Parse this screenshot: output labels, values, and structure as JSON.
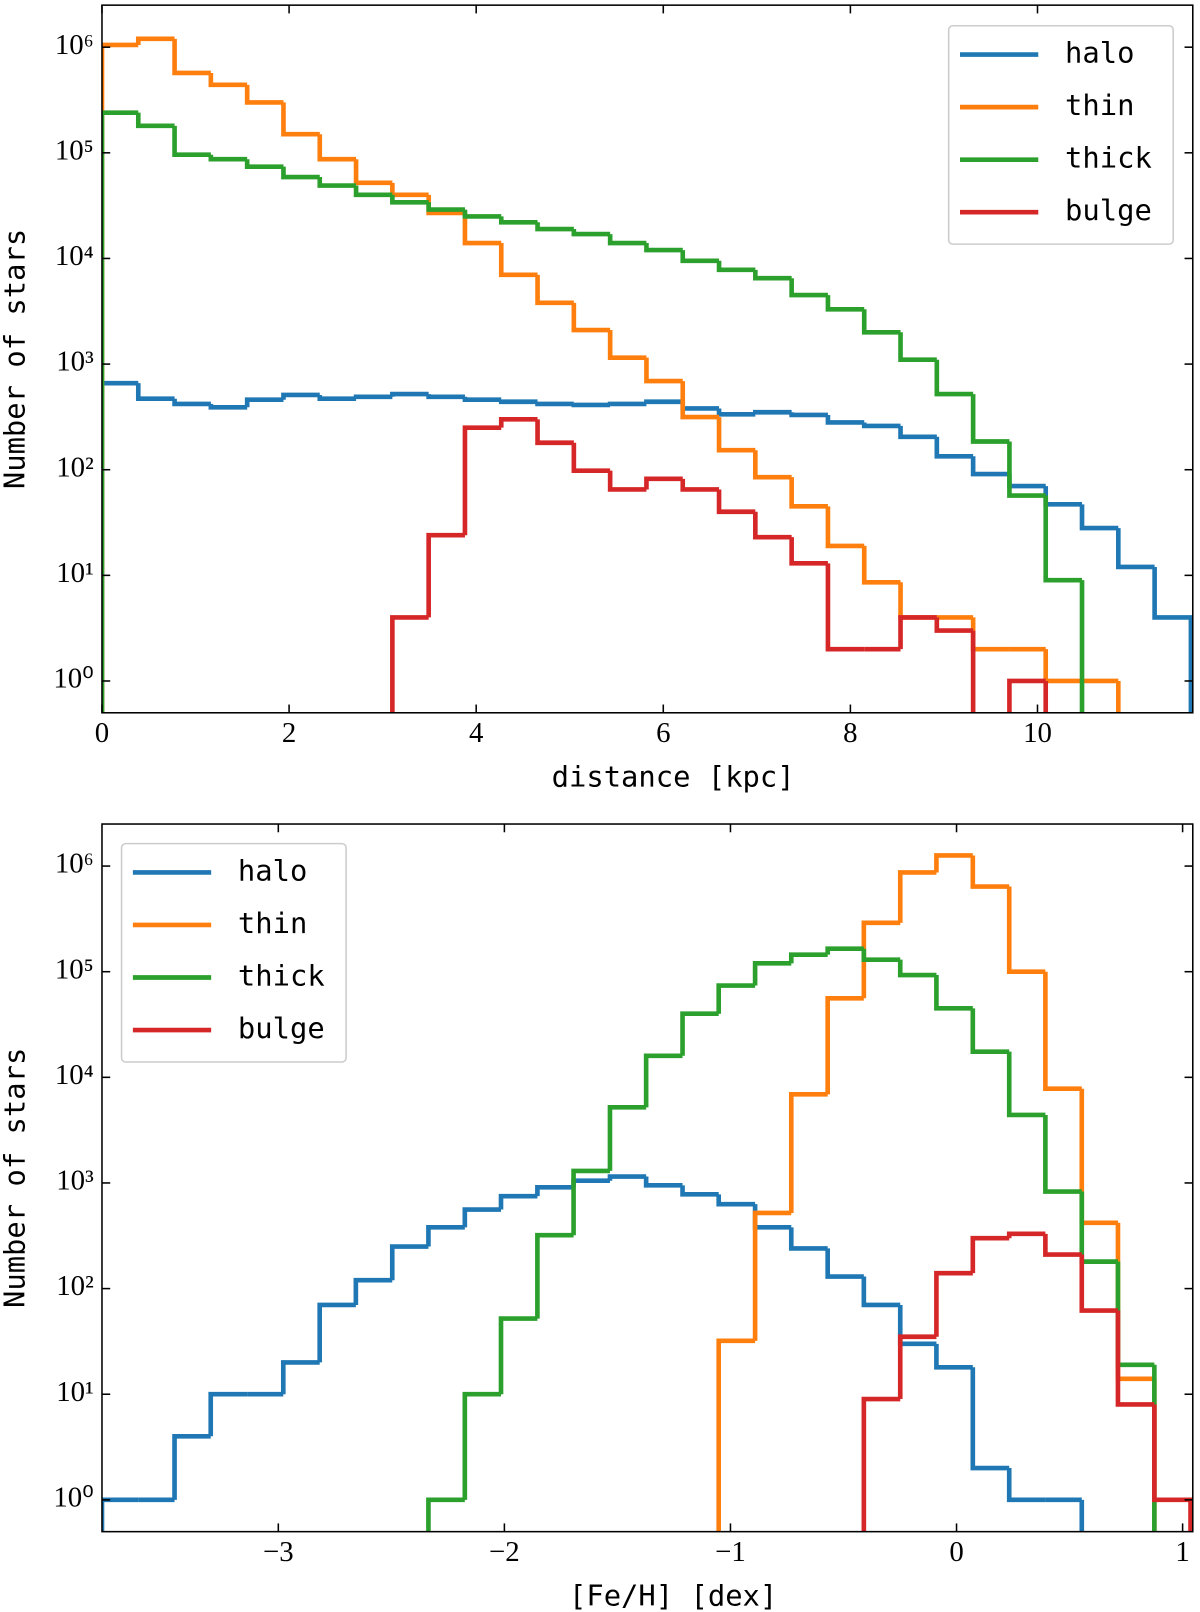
{
  "chart_data": [
    {
      "type": "histogram",
      "xlabel": "distance [kpc]",
      "ylabel": "Number of stars",
      "log_y": true,
      "legend": "upper right",
      "xlim": [
        0,
        11.66
      ],
      "ylim": [
        0.5,
        2500000
      ],
      "xticks": [
        0,
        2,
        4,
        6,
        8,
        10
      ],
      "yticks": [
        {
          "value": 1,
          "label": "10⁰"
        },
        {
          "value": 10,
          "label": "10¹"
        },
        {
          "value": 100,
          "label": "10²"
        },
        {
          "value": 1000,
          "label": "10³"
        },
        {
          "value": 10000,
          "label": "10⁴"
        },
        {
          "value": 100000,
          "label": "10⁵"
        },
        {
          "value": 1000000,
          "label": "10⁶"
        }
      ],
      "bins": [
        0,
        0.388,
        0.776,
        1.164,
        1.552,
        1.94,
        2.328,
        2.716,
        3.104,
        3.492,
        3.88,
        4.268,
        4.656,
        5.044,
        5.432,
        5.82,
        6.208,
        6.596,
        6.984,
        7.372,
        7.76,
        8.148,
        8.536,
        8.924,
        9.312,
        9.7,
        10.088,
        10.476,
        10.864,
        11.252,
        11.64
      ],
      "series": [
        {
          "name": "halo",
          "color": "#1f77b4",
          "values": [
            660,
            470,
            420,
            390,
            460,
            510,
            470,
            490,
            520,
            490,
            460,
            440,
            420,
            410,
            420,
            440,
            380,
            335,
            350,
            330,
            280,
            260,
            205,
            134,
            91,
            70,
            47,
            28,
            12,
            4
          ]
        },
        {
          "name": "thin",
          "color": "#ff7f0e",
          "values": [
            1050000,
            1200000,
            570000,
            440000,
            300000,
            150000,
            87000,
            52000,
            40000,
            27000,
            14000,
            7000,
            3800,
            2100,
            1150,
            690,
            315,
            153,
            85,
            45,
            19,
            8.6,
            4,
            4,
            2,
            2,
            1,
            1,
            0,
            0
          ]
        },
        {
          "name": "thick",
          "color": "#2ca02c",
          "values": [
            240000,
            180000,
            96000,
            87000,
            74000,
            59000,
            49000,
            40000,
            34000,
            29000,
            25000,
            22000,
            19000,
            17000,
            14000,
            12000,
            9500,
            7800,
            6500,
            4500,
            3300,
            2000,
            1100,
            520,
            185,
            57,
            9,
            0,
            0,
            0
          ]
        },
        {
          "name": "bulge",
          "color": "#d62728",
          "values": [
            0,
            0,
            0,
            0,
            0,
            0,
            0,
            0,
            4,
            24,
            250,
            300,
            180,
            98,
            65,
            82,
            65,
            40,
            23,
            13,
            2,
            2,
            4,
            3,
            0,
            1,
            0,
            0,
            0,
            0
          ]
        }
      ]
    },
    {
      "type": "histogram",
      "xlabel": "[Fe/H]  [dex]",
      "ylabel": "Number of stars",
      "log_y": true,
      "legend": "upper left",
      "xlim": [
        -3.78,
        1.045
      ],
      "ylim": [
        0.5,
        2500000
      ],
      "xticks": [
        {
          "value": -3,
          "label": "−3"
        },
        {
          "value": -2,
          "label": "−2"
        },
        {
          "value": -1,
          "label": "−1"
        },
        0,
        1
      ],
      "yticks": [
        {
          "value": 1,
          "label": "10⁰"
        },
        {
          "value": 10,
          "label": "10¹"
        },
        {
          "value": 100,
          "label": "10²"
        },
        {
          "value": 1000,
          "label": "10³"
        },
        {
          "value": 10000,
          "label": "10⁴"
        },
        {
          "value": 100000,
          "label": "10⁵"
        },
        {
          "value": 1000000,
          "label": "10⁶"
        }
      ],
      "bins": [
        -3.78,
        -3.62,
        -3.459,
        -3.299,
        -3.138,
        -2.978,
        -2.817,
        -2.657,
        -2.496,
        -2.336,
        -2.175,
        -2.015,
        -1.854,
        -1.694,
        -1.533,
        -1.373,
        -1.212,
        -1.052,
        -0.891,
        -0.731,
        -0.57,
        -0.41,
        -0.249,
        -0.089,
        0.072,
        0.233,
        0.393,
        0.554,
        0.714,
        0.875,
        1.035
      ],
      "series": [
        {
          "name": "halo",
          "color": "#1f77b4",
          "values": [
            1,
            1,
            4,
            10,
            10,
            20,
            70,
            120,
            250,
            380,
            560,
            750,
            910,
            1050,
            1150,
            950,
            780,
            630,
            380,
            240,
            130,
            70,
            30,
            18,
            2,
            1,
            1,
            0,
            0,
            0
          ]
        },
        {
          "name": "thin",
          "color": "#ff7f0e",
          "values": [
            0,
            0,
            0,
            0,
            0,
            0,
            0,
            0,
            0,
            0,
            0,
            0,
            0,
            0,
            0,
            0,
            0,
            32,
            520,
            6900,
            56000,
            290000,
            870000,
            1260000,
            640000,
            100000,
            7800,
            420,
            14,
            0
          ]
        },
        {
          "name": "thick",
          "color": "#2ca02c",
          "values": [
            0,
            0,
            0,
            0,
            0,
            0,
            0,
            0,
            0,
            1,
            10,
            52,
            320,
            1300,
            5200,
            16000,
            40000,
            74000,
            120000,
            145000,
            165000,
            130000,
            93000,
            45000,
            17500,
            4400,
            830,
            180,
            19,
            0
          ]
        },
        {
          "name": "bulge",
          "color": "#d62728",
          "values": [
            0,
            0,
            0,
            0,
            0,
            0,
            0,
            0,
            0,
            0,
            0,
            0,
            0,
            0,
            0,
            0,
            0,
            0,
            0,
            0,
            0,
            9,
            35,
            140,
            300,
            330,
            210,
            62,
            8,
            1
          ]
        }
      ]
    }
  ]
}
